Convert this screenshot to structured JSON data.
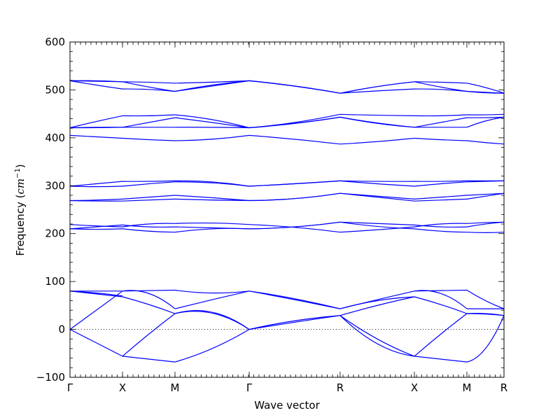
{
  "chart_data": {
    "type": "line",
    "xlabel": "Wave vector",
    "ylabel_text": "Frequency (",
    "ylabel_math": "cm",
    "ylabel_sup": "−1",
    "ylabel_close": ")",
    "ylim": [
      -100,
      600
    ],
    "yticks": [
      -100,
      0,
      100,
      200,
      300,
      400,
      500,
      600
    ],
    "kpoints": [
      {
        "label": "Γ",
        "pos": 0.0
      },
      {
        "label": "X",
        "pos": 1.0
      },
      {
        "label": "M",
        "pos": 2.0
      },
      {
        "label": "Γ",
        "pos": 3.414
      },
      {
        "label": "R",
        "pos": 5.146
      },
      {
        "label": "X",
        "pos": 6.56
      },
      {
        "label": "M",
        "pos": 7.56
      },
      {
        "label": "R",
        "pos": 8.267
      }
    ],
    "zero_line": true,
    "series_color": "#0000ff",
    "segments": [
      {
        "from": 0,
        "to": 1,
        "bands": [
          [
            0,
            -28,
            -56
          ],
          [
            0,
            40,
            80
          ],
          [
            80,
            74,
            68
          ],
          [
            80,
            76,
            70
          ],
          [
            80,
            80,
            80
          ],
          [
            210,
            214,
            218
          ],
          [
            210,
            209,
            210
          ],
          [
            219,
            216,
            214
          ],
          [
            269,
            270,
            272
          ],
          [
            269,
            268,
            268
          ],
          [
            299,
            298,
            299
          ],
          [
            299,
            304,
            309
          ],
          [
            405,
            402,
            399
          ],
          [
            421,
            421,
            422
          ],
          [
            421,
            434,
            446
          ],
          [
            421,
            422,
            422
          ],
          [
            519,
            510,
            502
          ],
          [
            519,
            519,
            517
          ],
          [
            519,
            518,
            517
          ]
        ]
      },
      {
        "from": 1,
        "to": 2,
        "bands": [
          [
            -56,
            -62,
            -68
          ],
          [
            -56,
            -10,
            33
          ],
          [
            80,
            75,
            43
          ],
          [
            68,
            52,
            33
          ],
          [
            80,
            81,
            82
          ],
          [
            218,
            214,
            214
          ],
          [
            210,
            205,
            203
          ],
          [
            214,
            220,
            221
          ],
          [
            272,
            276,
            280
          ],
          [
            268,
            270,
            272
          ],
          [
            299,
            304,
            308
          ],
          [
            309,
            309,
            310
          ],
          [
            399,
            396,
            394
          ],
          [
            422,
            422,
            422
          ],
          [
            446,
            446,
            448
          ],
          [
            422,
            432,
            442
          ],
          [
            502,
            501,
            497
          ],
          [
            517,
            516,
            514
          ],
          [
            517,
            506,
            497
          ]
        ]
      },
      {
        "from": 2,
        "to": 3,
        "bands": [
          [
            -68,
            -40,
            0
          ],
          [
            33,
            34,
            0
          ],
          [
            43,
            62,
            80
          ],
          [
            33,
            36,
            0
          ],
          [
            82,
            76,
            80
          ],
          [
            214,
            212,
            210
          ],
          [
            203,
            210,
            210
          ],
          [
            221,
            222,
            219
          ],
          [
            280,
            275,
            269
          ],
          [
            272,
            270,
            269
          ],
          [
            308,
            306,
            299
          ],
          [
            310,
            308,
            299
          ],
          [
            394,
            397,
            405
          ],
          [
            422,
            422,
            421
          ],
          [
            448,
            438,
            421
          ],
          [
            442,
            432,
            421
          ],
          [
            497,
            510,
            519
          ],
          [
            514,
            516,
            519
          ],
          [
            497,
            508,
            519
          ]
        ]
      },
      {
        "from": 3,
        "to": 4,
        "bands": [
          [
            0,
            18,
            29
          ],
          [
            0,
            15,
            29
          ],
          [
            80,
            62,
            43
          ],
          [
            0,
            18,
            29
          ],
          [
            80,
            64,
            43
          ],
          [
            210,
            214,
            224
          ],
          [
            210,
            214,
            224
          ],
          [
            219,
            213,
            203
          ],
          [
            269,
            273,
            284
          ],
          [
            269,
            273,
            284
          ],
          [
            299,
            304,
            310
          ],
          [
            299,
            304,
            310
          ],
          [
            405,
            397,
            387
          ],
          [
            421,
            432,
            449
          ],
          [
            421,
            430,
            443
          ],
          [
            421,
            430,
            443
          ],
          [
            519,
            508,
            493
          ],
          [
            519,
            508,
            493
          ],
          [
            519,
            508,
            493
          ]
        ]
      },
      {
        "from": 4,
        "to": 5,
        "bands": [
          [
            29,
            -30,
            -56
          ],
          [
            29,
            -20,
            -56
          ],
          [
            43,
            60,
            68
          ],
          [
            29,
            50,
            68
          ],
          [
            43,
            62,
            80
          ],
          [
            224,
            221,
            218
          ],
          [
            224,
            215,
            210
          ],
          [
            203,
            208,
            214
          ],
          [
            284,
            276,
            268
          ],
          [
            284,
            278,
            272
          ],
          [
            310,
            304,
            299
          ],
          [
            310,
            309,
            309
          ],
          [
            387,
            392,
            399
          ],
          [
            449,
            447,
            446
          ],
          [
            443,
            430,
            422
          ],
          [
            443,
            431,
            422
          ],
          [
            493,
            498,
            502
          ],
          [
            493,
            507,
            517
          ],
          [
            493,
            507,
            517
          ]
        ]
      },
      {
        "from": 5,
        "to": 6,
        "bands": [
          [
            -56,
            -62,
            -68
          ],
          [
            -56,
            -10,
            33
          ],
          [
            80,
            75,
            43
          ],
          [
            68,
            52,
            33
          ],
          [
            80,
            81,
            82
          ],
          [
            218,
            214,
            214
          ],
          [
            210,
            205,
            203
          ],
          [
            214,
            220,
            221
          ],
          [
            272,
            276,
            280
          ],
          [
            268,
            270,
            272
          ],
          [
            299,
            304,
            308
          ],
          [
            309,
            309,
            310
          ],
          [
            399,
            396,
            394
          ],
          [
            422,
            422,
            422
          ],
          [
            446,
            446,
            448
          ],
          [
            422,
            432,
            442
          ],
          [
            502,
            501,
            497
          ],
          [
            517,
            516,
            514
          ],
          [
            517,
            506,
            497
          ]
        ]
      },
      {
        "from": 6,
        "to": 7,
        "bands": [
          [
            -68,
            -40,
            29
          ],
          [
            33,
            33,
            29
          ],
          [
            43,
            43,
            43
          ],
          [
            33,
            32,
            29
          ],
          [
            82,
            60,
            43
          ],
          [
            214,
            220,
            224
          ],
          [
            203,
            202,
            203
          ],
          [
            221,
            223,
            224
          ],
          [
            280,
            282,
            284
          ],
          [
            272,
            278,
            284
          ],
          [
            308,
            309,
            310
          ],
          [
            310,
            310,
            310
          ],
          [
            394,
            390,
            387
          ],
          [
            422,
            435,
            443
          ],
          [
            448,
            448,
            449
          ],
          [
            442,
            442,
            443
          ],
          [
            497,
            495,
            493
          ],
          [
            514,
            505,
            493
          ],
          [
            497,
            494,
            493
          ]
        ]
      }
    ]
  }
}
